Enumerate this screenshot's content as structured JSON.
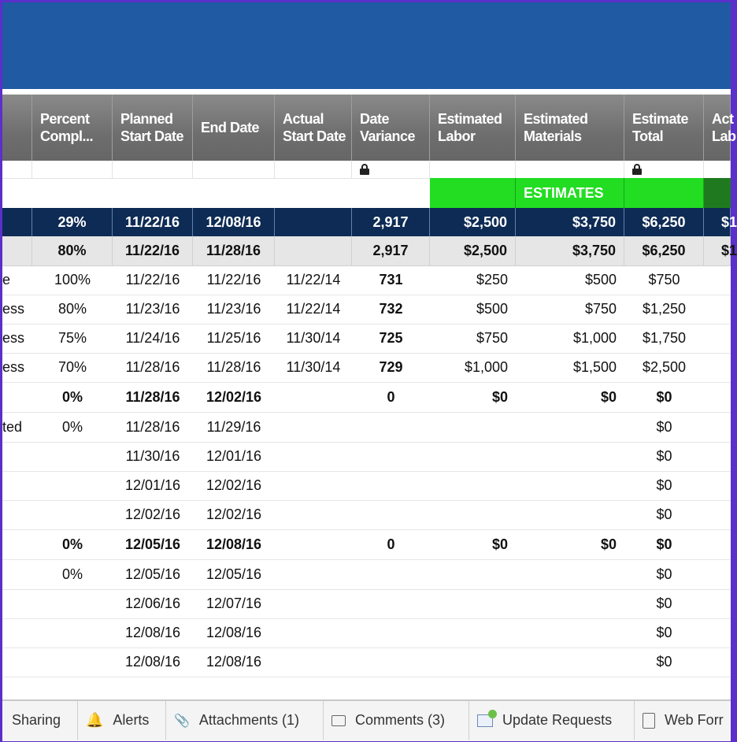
{
  "columns": [
    {
      "label": "Percent Compl..."
    },
    {
      "label": "Planned Start Date"
    },
    {
      "label": "End Date"
    },
    {
      "label": "Actual Start Date"
    },
    {
      "label": "Date Variance"
    },
    {
      "label": "Estimated Labor"
    },
    {
      "label": "Estimated Materials"
    },
    {
      "label": "Estimate Total"
    },
    {
      "label": "Act Lab"
    }
  ],
  "estimates_label": "ESTIMATES",
  "rows": [
    {
      "type": "navy",
      "cut": "",
      "pct": "29%",
      "start": "11/22/16",
      "end": "12/08/16",
      "actual": "",
      "var": "2,917",
      "labor": "$2,500",
      "mat": "$3,750",
      "total": "$6,250",
      "act": "$1"
    },
    {
      "type": "gray",
      "cut": "",
      "pct": "80%",
      "start": "11/22/16",
      "end": "11/28/16",
      "actual": "",
      "var": "2,917",
      "labor": "$2,500",
      "mat": "$3,750",
      "total": "$6,250",
      "act": "$1"
    },
    {
      "type": "data",
      "cut": "e",
      "pct": "100%",
      "start": "11/22/16",
      "end": "11/22/16",
      "actual": "11/22/14",
      "var": "731",
      "labor": "$250",
      "mat": "$500",
      "total": "$750",
      "act": ""
    },
    {
      "type": "data",
      "cut": "ess",
      "pct": "80%",
      "start": "11/23/16",
      "end": "11/23/16",
      "actual": "11/22/14",
      "var": "732",
      "labor": "$500",
      "mat": "$750",
      "total": "$1,250",
      "act": ""
    },
    {
      "type": "data",
      "cut": "ess",
      "pct": "75%",
      "start": "11/24/16",
      "end": "11/25/16",
      "actual": "11/30/14",
      "var": "725",
      "labor": "$750",
      "mat": "$1,000",
      "total": "$1,750",
      "act": ""
    },
    {
      "type": "data",
      "cut": "ess",
      "pct": "70%",
      "start": "11/28/16",
      "end": "11/28/16",
      "actual": "11/30/14",
      "var": "729",
      "labor": "$1,000",
      "mat": "$1,500",
      "total": "$2,500",
      "act": ""
    },
    {
      "type": "bold",
      "cut": "",
      "pct": "0%",
      "start": "11/28/16",
      "end": "12/02/16",
      "actual": "",
      "var": "0",
      "labor": "$0",
      "mat": "$0",
      "total": "$0",
      "act": ""
    },
    {
      "type": "data",
      "cut": "ted",
      "pct": "0%",
      "start": "11/28/16",
      "end": "11/29/16",
      "actual": "",
      "var": "",
      "labor": "",
      "mat": "",
      "total": "$0",
      "act": ""
    },
    {
      "type": "data",
      "cut": "",
      "pct": "",
      "start": "11/30/16",
      "end": "12/01/16",
      "actual": "",
      "var": "",
      "labor": "",
      "mat": "",
      "total": "$0",
      "act": ""
    },
    {
      "type": "data",
      "cut": "",
      "pct": "",
      "start": "12/01/16",
      "end": "12/02/16",
      "actual": "",
      "var": "",
      "labor": "",
      "mat": "",
      "total": "$0",
      "act": ""
    },
    {
      "type": "data",
      "cut": "",
      "pct": "",
      "start": "12/02/16",
      "end": "12/02/16",
      "actual": "",
      "var": "",
      "labor": "",
      "mat": "",
      "total": "$0",
      "act": ""
    },
    {
      "type": "bold",
      "cut": "",
      "pct": "0%",
      "start": "12/05/16",
      "end": "12/08/16",
      "actual": "",
      "var": "0",
      "labor": "$0",
      "mat": "$0",
      "total": "$0",
      "act": ""
    },
    {
      "type": "data",
      "cut": "",
      "pct": "0%",
      "start": "12/05/16",
      "end": "12/05/16",
      "actual": "",
      "var": "",
      "labor": "",
      "mat": "",
      "total": "$0",
      "act": ""
    },
    {
      "type": "data",
      "cut": "",
      "pct": "",
      "start": "12/06/16",
      "end": "12/07/16",
      "actual": "",
      "var": "",
      "labor": "",
      "mat": "",
      "total": "$0",
      "act": ""
    },
    {
      "type": "data",
      "cut": "",
      "pct": "",
      "start": "12/08/16",
      "end": "12/08/16",
      "actual": "",
      "var": "",
      "labor": "",
      "mat": "",
      "total": "$0",
      "act": ""
    },
    {
      "type": "data",
      "cut": "",
      "pct": "",
      "start": "12/08/16",
      "end": "12/08/16",
      "actual": "",
      "var": "",
      "labor": "",
      "mat": "",
      "total": "$0",
      "act": ""
    }
  ],
  "tabs": [
    {
      "label": "Sharing",
      "icon": "none"
    },
    {
      "label": "Alerts",
      "icon": "bell-icon"
    },
    {
      "label": "Attachments (1)",
      "icon": "paperclip-icon"
    },
    {
      "label": "Comments (3)",
      "icon": "comment-icon"
    },
    {
      "label": "Update Requests",
      "icon": "update-request-icon"
    },
    {
      "label": "Web Forr",
      "icon": "web-form-icon"
    }
  ]
}
